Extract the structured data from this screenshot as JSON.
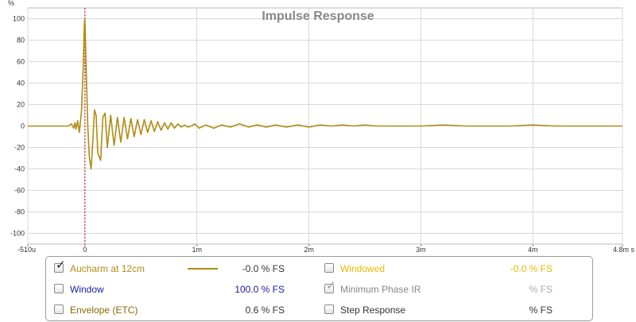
{
  "chart_data": {
    "type": "line",
    "title": "Impulse Response",
    "ylabel": "%",
    "xlabel": "",
    "xlim": [
      -0.51,
      4.8
    ],
    "ylim": [
      -110,
      110
    ],
    "x_ticks": [
      {
        "v": -0.51,
        "label": "-510u"
      },
      {
        "v": 0,
        "label": "0"
      },
      {
        "v": 1,
        "label": "1m"
      },
      {
        "v": 2,
        "label": "2m"
      },
      {
        "v": 3,
        "label": "3m"
      },
      {
        "v": 4,
        "label": "4m"
      },
      {
        "v": 4.8,
        "label": "4.8m s"
      }
    ],
    "y_ticks": [
      100,
      80,
      60,
      40,
      20,
      0,
      -20,
      -40,
      -60,
      -80,
      -100
    ],
    "grid": true,
    "marker_x": 0,
    "series": [
      {
        "name": "Aucharm at 12cm",
        "color": "#b08c14",
        "x": [
          -0.51,
          -0.3,
          -0.15,
          -0.12,
          -0.1,
          -0.09,
          -0.08,
          -0.065,
          -0.05,
          -0.04,
          -0.03,
          -0.015,
          -0.005,
          0,
          0.01,
          0.025,
          0.04,
          0.055,
          0.07,
          0.085,
          0.1,
          0.115,
          0.14,
          0.16,
          0.18,
          0.2,
          0.23,
          0.26,
          0.29,
          0.32,
          0.35,
          0.38,
          0.41,
          0.44,
          0.47,
          0.5,
          0.53,
          0.56,
          0.59,
          0.62,
          0.65,
          0.68,
          0.71,
          0.74,
          0.77,
          0.8,
          0.83,
          0.86,
          0.89,
          0.92,
          0.95,
          0.98,
          1.02,
          1.08,
          1.15,
          1.22,
          1.3,
          1.38,
          1.46,
          1.54,
          1.62,
          1.7,
          1.8,
          1.9,
          2.0,
          2.1,
          2.2,
          2.3,
          2.4,
          2.5,
          2.6,
          2.7,
          2.8,
          2.9,
          3.0,
          3.2,
          3.4,
          3.6,
          3.8,
          4.0,
          4.2,
          4.4,
          4.6,
          4.8
        ],
        "values": [
          0,
          0,
          0,
          2,
          -2,
          3,
          -3,
          5,
          -6,
          4,
          15,
          55,
          95,
          100,
          55,
          0,
          -30,
          -40,
          -15,
          15,
          10,
          -25,
          -32,
          8,
          12,
          -20,
          10,
          -18,
          8,
          -15,
          8,
          -12,
          7,
          -10,
          6,
          -8,
          6,
          -6,
          5,
          -5,
          4,
          -4,
          3,
          -3,
          3,
          -2,
          2,
          -1,
          1,
          -1,
          0,
          2,
          -2,
          1,
          -2,
          1,
          -1,
          2,
          -1,
          1,
          -1,
          1,
          -1,
          1,
          -1,
          1,
          0,
          1,
          0,
          1,
          0,
          0,
          0,
          0,
          0,
          1,
          0,
          0,
          0,
          1,
          0,
          0,
          0,
          0
        ]
      }
    ]
  },
  "legend": {
    "items": [
      {
        "label": "Aucharm at 12cm",
        "checked": true,
        "value": "-0.0 % FS",
        "color": "#b08c14",
        "value_color": "#333333",
        "side": "left"
      },
      {
        "label": "Window",
        "checked": false,
        "value": "100.0 % FS",
        "color": "#1a1aa8",
        "value_color": "#1a1aa8",
        "side": "left"
      },
      {
        "label": "Envelope (ETC)",
        "checked": false,
        "value": "0.6 % FS",
        "color": "#8a6a00",
        "value_color": "#333333",
        "side": "left"
      },
      {
        "label": "Windowed",
        "checked": false,
        "value": "-0.0 % FS",
        "color": "#e8b800",
        "value_color": "#e8b800",
        "side": "right"
      },
      {
        "label": "Minimum Phase IR",
        "checked": true,
        "value": "% FS",
        "color": "#888888",
        "value_color": "#aaaaaa",
        "side": "right"
      },
      {
        "label": "Step Response",
        "checked": false,
        "value": "% FS",
        "color": "#333333",
        "value_color": "#333333",
        "side": "right"
      }
    ]
  }
}
